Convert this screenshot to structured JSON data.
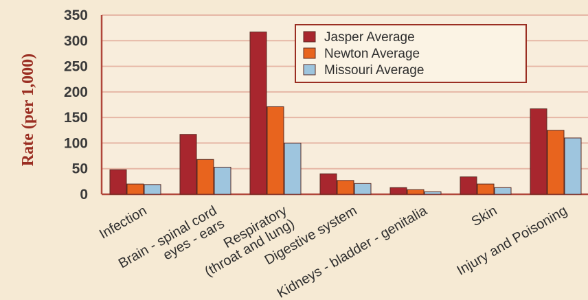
{
  "chart_data": {
    "type": "bar",
    "ylabel": "Rate (per 1,000)",
    "ylim": [
      0,
      350
    ],
    "yticks": [
      "0",
      "50",
      "100",
      "150",
      "200",
      "250",
      "300",
      "350"
    ],
    "grid": true,
    "legend_position": "top-right",
    "categories": [
      [
        "Infection"
      ],
      [
        "Brain - spinal cord",
        "eyes - ears"
      ],
      [
        "Respiratory",
        "(throat and lung)"
      ],
      [
        "Digestive system"
      ],
      [
        "Kidneys - bladder - genitalia"
      ],
      [
        "Skin"
      ],
      [
        "Injury and Poisoning"
      ]
    ],
    "series": [
      {
        "name": "Jasper Average",
        "color": "#a8262e",
        "values": [
          48,
          117,
          317,
          40,
          13,
          34,
          167
        ]
      },
      {
        "name": "Newton Average",
        "color": "#e8641e",
        "values": [
          20,
          68,
          171,
          27,
          9,
          20,
          125
        ]
      },
      {
        "name": "Missouri Average",
        "color": "#9ec5de",
        "values": [
          19,
          53,
          100,
          21,
          5,
          13,
          110
        ]
      }
    ]
  }
}
